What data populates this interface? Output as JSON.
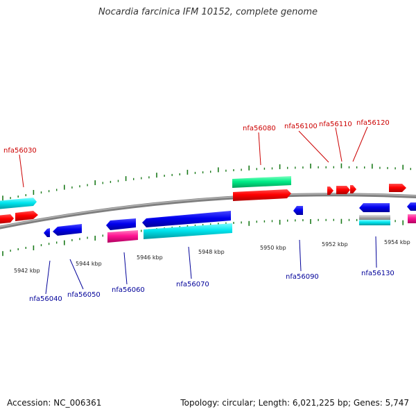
{
  "title": "Nocardia farcinica IFM 10152, complete genome",
  "footer": {
    "accession_label": "Accession:",
    "accession": "NC_006361",
    "topology_label": "Topology:",
    "topology": "circular",
    "length_label": "Length:",
    "length": "6,021,225 bp",
    "genes_label": "Genes:",
    "genes": "5,747"
  },
  "colors": {
    "backbone": "#7f7f7f",
    "tick": "#1a7a1a",
    "top_label": "#cc0000",
    "bottom_label": "#000099",
    "cds_red": "#ff0000",
    "cds_blue": "#0000ee",
    "cds_cyan": "#00e5ee",
    "cds_magenta": "#ff1493",
    "cds_green": "#00ee88",
    "cds_gray": "#aaaaaa"
  },
  "kbp_labels": [
    "5942 kbp",
    "5944 kbp",
    "5946 kbp",
    "5948 kbp",
    "5950 kbp",
    "5952 kbp",
    "5954 kbp"
  ],
  "top_labels": [
    "nfa56030",
    "nfa56080",
    "nfa56100",
    "nfa56110",
    "nfa56120"
  ],
  "bottom_labels": [
    "nfa56040",
    "nfa56050",
    "nfa56060",
    "nfa56070",
    "nfa56090",
    "nfa56130"
  ]
}
